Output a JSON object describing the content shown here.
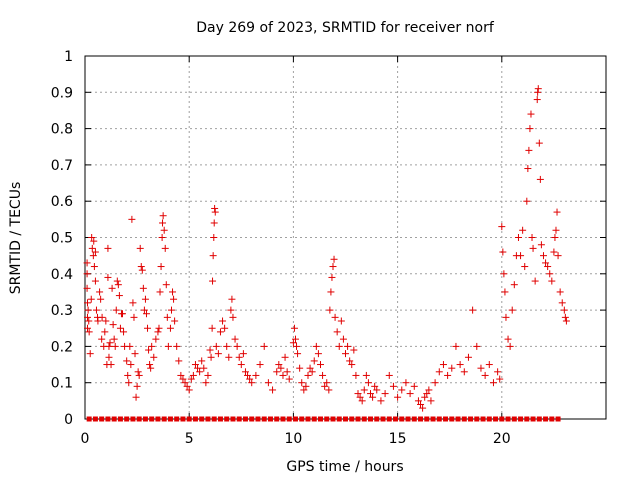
{
  "chart_data": {
    "type": "scatter",
    "title": "Day 269 of 2023, SRMTID for receiver norf",
    "xlabel": "GPS time / hours",
    "ylabel": "SRMTID / TECUs",
    "xlim": [
      0,
      25
    ],
    "ylim": [
      0,
      1
    ],
    "x_ticks": [
      0,
      5,
      10,
      15,
      20
    ],
    "x_tick_labels": [
      "0",
      "5",
      "10",
      "15",
      "20"
    ],
    "y_ticks": [
      0,
      0.1,
      0.2,
      0.3,
      0.4,
      0.5,
      0.6,
      0.7,
      0.8,
      0.9,
      1
    ],
    "y_tick_labels": [
      "0",
      "0.1",
      "0.2",
      "0.3",
      "0.4",
      "0.5",
      "0.6",
      "0.7",
      "0.8",
      "0.9",
      "1"
    ],
    "grid": true,
    "marker": "+",
    "color": "#e00000",
    "series": [
      {
        "name": "SRMTID",
        "points": [
          [
            0.1,
            0.43
          ],
          [
            0.1,
            0.4
          ],
          [
            0.1,
            0.36
          ],
          [
            0.12,
            0.32
          ],
          [
            0.12,
            0.28
          ],
          [
            0.12,
            0.25
          ],
          [
            0.15,
            0.3
          ],
          [
            0.18,
            0.27
          ],
          [
            0.2,
            0.24
          ],
          [
            0.25,
            0.18
          ],
          [
            0.3,
            0.33
          ],
          [
            0.32,
            0.5
          ],
          [
            0.35,
            0.47
          ],
          [
            0.4,
            0.45
          ],
          [
            0.42,
            0.49
          ],
          [
            0.45,
            0.42
          ],
          [
            0.5,
            0.38
          ],
          [
            0.5,
            0.46
          ],
          [
            0.55,
            0.3
          ],
          [
            0.6,
            0.28
          ],
          [
            0.62,
            0.27
          ],
          [
            0.7,
            0.35
          ],
          [
            0.75,
            0.33
          ],
          [
            0.8,
            0.22
          ],
          [
            0.82,
            0.28
          ],
          [
            0.9,
            0.2
          ],
          [
            0.95,
            0.24
          ],
          [
            1.0,
            0.27
          ],
          [
            1.05,
            0.15
          ],
          [
            1.1,
            0.39
          ],
          [
            1.1,
            0.47
          ],
          [
            1.15,
            0.2
          ],
          [
            1.15,
            0.17
          ],
          [
            1.2,
            0.21
          ],
          [
            1.25,
            0.15
          ],
          [
            1.3,
            0.36
          ],
          [
            1.35,
            0.26
          ],
          [
            1.4,
            0.22
          ],
          [
            1.45,
            0.2
          ],
          [
            1.5,
            0.3
          ],
          [
            1.55,
            0.38
          ],
          [
            1.6,
            0.37
          ],
          [
            1.65,
            0.34
          ],
          [
            1.7,
            0.25
          ],
          [
            1.75,
            0.29
          ],
          [
            1.8,
            0.29
          ],
          [
            1.85,
            0.24
          ],
          [
            1.9,
            0.2
          ],
          [
            2.0,
            0.16
          ],
          [
            2.05,
            0.12
          ],
          [
            2.1,
            0.1
          ],
          [
            2.15,
            0.2
          ],
          [
            2.2,
            0.15
          ],
          [
            2.25,
            0.55
          ],
          [
            2.3,
            0.32
          ],
          [
            2.35,
            0.28
          ],
          [
            2.4,
            0.18
          ],
          [
            2.45,
            0.06
          ],
          [
            2.5,
            0.09
          ],
          [
            2.55,
            0.13
          ],
          [
            2.6,
            0.12
          ],
          [
            2.65,
            0.47
          ],
          [
            2.7,
            0.42
          ],
          [
            2.75,
            0.41
          ],
          [
            2.8,
            0.36
          ],
          [
            2.85,
            0.3
          ],
          [
            2.9,
            0.33
          ],
          [
            2.95,
            0.29
          ],
          [
            3.0,
            0.25
          ],
          [
            3.05,
            0.19
          ],
          [
            3.1,
            0.15
          ],
          [
            3.15,
            0.14
          ],
          [
            3.2,
            0.2
          ],
          [
            3.3,
            0.17
          ],
          [
            3.4,
            0.22
          ],
          [
            3.5,
            0.24
          ],
          [
            3.55,
            0.25
          ],
          [
            3.6,
            0.35
          ],
          [
            3.65,
            0.42
          ],
          [
            3.7,
            0.5
          ],
          [
            3.72,
            0.54
          ],
          [
            3.75,
            0.56
          ],
          [
            3.8,
            0.52
          ],
          [
            3.85,
            0.47
          ],
          [
            3.9,
            0.37
          ],
          [
            3.95,
            0.28
          ],
          [
            4.0,
            0.2
          ],
          [
            4.1,
            0.25
          ],
          [
            4.15,
            0.3
          ],
          [
            4.2,
            0.35
          ],
          [
            4.25,
            0.33
          ],
          [
            4.3,
            0.27
          ],
          [
            4.4,
            0.2
          ],
          [
            4.5,
            0.16
          ],
          [
            4.6,
            0.12
          ],
          [
            4.7,
            0.11
          ],
          [
            4.8,
            0.1
          ],
          [
            4.9,
            0.09
          ],
          [
            5.0,
            0.08
          ],
          [
            5.1,
            0.11
          ],
          [
            5.2,
            0.12
          ],
          [
            5.3,
            0.15
          ],
          [
            5.4,
            0.14
          ],
          [
            5.5,
            0.13
          ],
          [
            5.6,
            0.16
          ],
          [
            5.7,
            0.14
          ],
          [
            5.8,
            0.1
          ],
          [
            5.9,
            0.12
          ],
          [
            6.0,
            0.19
          ],
          [
            6.05,
            0.17
          ],
          [
            6.1,
            0.25
          ],
          [
            6.12,
            0.38
          ],
          [
            6.15,
            0.45
          ],
          [
            6.18,
            0.5
          ],
          [
            6.2,
            0.54
          ],
          [
            6.22,
            0.58
          ],
          [
            6.25,
            0.57
          ],
          [
            6.3,
            0.2
          ],
          [
            6.4,
            0.18
          ],
          [
            6.5,
            0.24
          ],
          [
            6.6,
            0.27
          ],
          [
            6.7,
            0.25
          ],
          [
            6.8,
            0.2
          ],
          [
            6.9,
            0.17
          ],
          [
            7.0,
            0.3
          ],
          [
            7.05,
            0.33
          ],
          [
            7.1,
            0.28
          ],
          [
            7.2,
            0.22
          ],
          [
            7.3,
            0.2
          ],
          [
            7.4,
            0.17
          ],
          [
            7.5,
            0.15
          ],
          [
            7.6,
            0.18
          ],
          [
            7.7,
            0.13
          ],
          [
            7.8,
            0.12
          ],
          [
            7.9,
            0.11
          ],
          [
            8.0,
            0.1
          ],
          [
            8.2,
            0.12
          ],
          [
            8.4,
            0.15
          ],
          [
            8.6,
            0.2
          ],
          [
            8.8,
            0.1
          ],
          [
            9.0,
            0.08
          ],
          [
            9.2,
            0.13
          ],
          [
            9.3,
            0.15
          ],
          [
            9.4,
            0.14
          ],
          [
            9.5,
            0.12
          ],
          [
            9.6,
            0.17
          ],
          [
            9.7,
            0.13
          ],
          [
            9.8,
            0.11
          ],
          [
            10.0,
            0.21
          ],
          [
            10.05,
            0.25
          ],
          [
            10.1,
            0.22
          ],
          [
            10.15,
            0.2
          ],
          [
            10.2,
            0.18
          ],
          [
            10.3,
            0.14
          ],
          [
            10.4,
            0.1
          ],
          [
            10.5,
            0.08
          ],
          [
            10.6,
            0.09
          ],
          [
            10.7,
            0.12
          ],
          [
            10.8,
            0.14
          ],
          [
            10.9,
            0.13
          ],
          [
            11.0,
            0.16
          ],
          [
            11.1,
            0.2
          ],
          [
            11.2,
            0.18
          ],
          [
            11.3,
            0.15
          ],
          [
            11.4,
            0.12
          ],
          [
            11.5,
            0.09
          ],
          [
            11.6,
            0.1
          ],
          [
            11.7,
            0.08
          ],
          [
            11.75,
            0.3
          ],
          [
            11.8,
            0.35
          ],
          [
            11.85,
            0.39
          ],
          [
            11.9,
            0.42
          ],
          [
            11.95,
            0.44
          ],
          [
            12.0,
            0.28
          ],
          [
            12.1,
            0.24
          ],
          [
            12.2,
            0.2
          ],
          [
            12.3,
            0.27
          ],
          [
            12.4,
            0.22
          ],
          [
            12.5,
            0.18
          ],
          [
            12.6,
            0.2
          ],
          [
            12.7,
            0.16
          ],
          [
            12.8,
            0.15
          ],
          [
            12.9,
            0.19
          ],
          [
            13.0,
            0.12
          ],
          [
            13.1,
            0.07
          ],
          [
            13.2,
            0.06
          ],
          [
            13.3,
            0.05
          ],
          [
            13.4,
            0.08
          ],
          [
            13.5,
            0.12
          ],
          [
            13.6,
            0.1
          ],
          [
            13.7,
            0.07
          ],
          [
            13.8,
            0.06
          ],
          [
            13.9,
            0.09
          ],
          [
            14.0,
            0.08
          ],
          [
            14.2,
            0.05
          ],
          [
            14.4,
            0.07
          ],
          [
            14.6,
            0.12
          ],
          [
            14.8,
            0.09
          ],
          [
            15.0,
            0.06
          ],
          [
            15.2,
            0.08
          ],
          [
            15.4,
            0.1
          ],
          [
            15.6,
            0.07
          ],
          [
            15.8,
            0.09
          ],
          [
            16.0,
            0.05
          ],
          [
            16.1,
            0.04
          ],
          [
            16.2,
            0.03
          ],
          [
            16.3,
            0.06
          ],
          [
            16.4,
            0.07
          ],
          [
            16.5,
            0.08
          ],
          [
            16.6,
            0.05
          ],
          [
            16.8,
            0.1
          ],
          [
            17.0,
            0.13
          ],
          [
            17.2,
            0.15
          ],
          [
            17.4,
            0.12
          ],
          [
            17.6,
            0.14
          ],
          [
            17.8,
            0.2
          ],
          [
            18.0,
            0.15
          ],
          [
            18.2,
            0.13
          ],
          [
            18.4,
            0.17
          ],
          [
            18.6,
            0.3
          ],
          [
            18.8,
            0.2
          ],
          [
            19.0,
            0.14
          ],
          [
            19.2,
            0.12
          ],
          [
            19.4,
            0.15
          ],
          [
            19.6,
            0.1
          ],
          [
            19.8,
            0.13
          ],
          [
            19.9,
            0.11
          ],
          [
            20.0,
            0.53
          ],
          [
            20.05,
            0.46
          ],
          [
            20.1,
            0.4
          ],
          [
            20.15,
            0.35
          ],
          [
            20.2,
            0.28
          ],
          [
            20.3,
            0.22
          ],
          [
            20.4,
            0.2
          ],
          [
            20.5,
            0.3
          ],
          [
            20.6,
            0.37
          ],
          [
            20.7,
            0.45
          ],
          [
            20.8,
            0.5
          ],
          [
            20.9,
            0.45
          ],
          [
            21.0,
            0.52
          ],
          [
            21.1,
            0.42
          ],
          [
            21.2,
            0.6
          ],
          [
            21.25,
            0.69
          ],
          [
            21.3,
            0.74
          ],
          [
            21.35,
            0.8
          ],
          [
            21.4,
            0.84
          ],
          [
            21.45,
            0.5
          ],
          [
            21.5,
            0.47
          ],
          [
            21.6,
            0.38
          ],
          [
            21.7,
            0.88
          ],
          [
            21.72,
            0.9
          ],
          [
            21.75,
            0.91
          ],
          [
            21.8,
            0.76
          ],
          [
            21.85,
            0.66
          ],
          [
            21.9,
            0.48
          ],
          [
            22.0,
            0.45
          ],
          [
            22.1,
            0.43
          ],
          [
            22.2,
            0.42
          ],
          [
            22.3,
            0.4
          ],
          [
            22.4,
            0.38
          ],
          [
            22.5,
            0.46
          ],
          [
            22.55,
            0.5
          ],
          [
            22.6,
            0.52
          ],
          [
            22.65,
            0.57
          ],
          [
            22.7,
            0.45
          ],
          [
            22.8,
            0.35
          ],
          [
            22.9,
            0.32
          ],
          [
            23.0,
            0.3
          ],
          [
            23.05,
            0.28
          ],
          [
            23.1,
            0.27
          ]
        ],
        "zero_points_x": [
          0.2,
          0.5,
          0.8,
          1.1,
          1.4,
          1.7,
          2.0,
          2.3,
          2.6,
          2.9,
          3.2,
          3.5,
          3.8,
          4.1,
          4.4,
          4.7,
          5.0,
          5.3,
          5.6,
          5.9,
          6.2,
          6.5,
          6.8,
          7.1,
          7.4,
          7.7,
          8.0,
          8.3,
          8.6,
          8.9,
          9.2,
          9.5,
          9.8,
          10.1,
          10.4,
          10.7,
          11.0,
          11.3,
          11.6,
          11.9,
          12.2,
          12.5,
          12.8,
          13.1,
          13.4,
          13.7,
          14.0,
          14.3,
          14.6,
          14.9,
          15.2,
          15.5,
          15.8,
          16.1,
          16.4,
          16.7,
          17.0,
          17.3,
          17.6,
          17.9,
          18.2,
          18.5,
          18.8,
          19.1,
          19.4,
          19.7,
          20.0,
          20.3,
          20.6,
          20.9,
          21.2,
          21.5,
          21.8,
          22.1,
          22.4,
          22.7
        ]
      }
    ]
  }
}
